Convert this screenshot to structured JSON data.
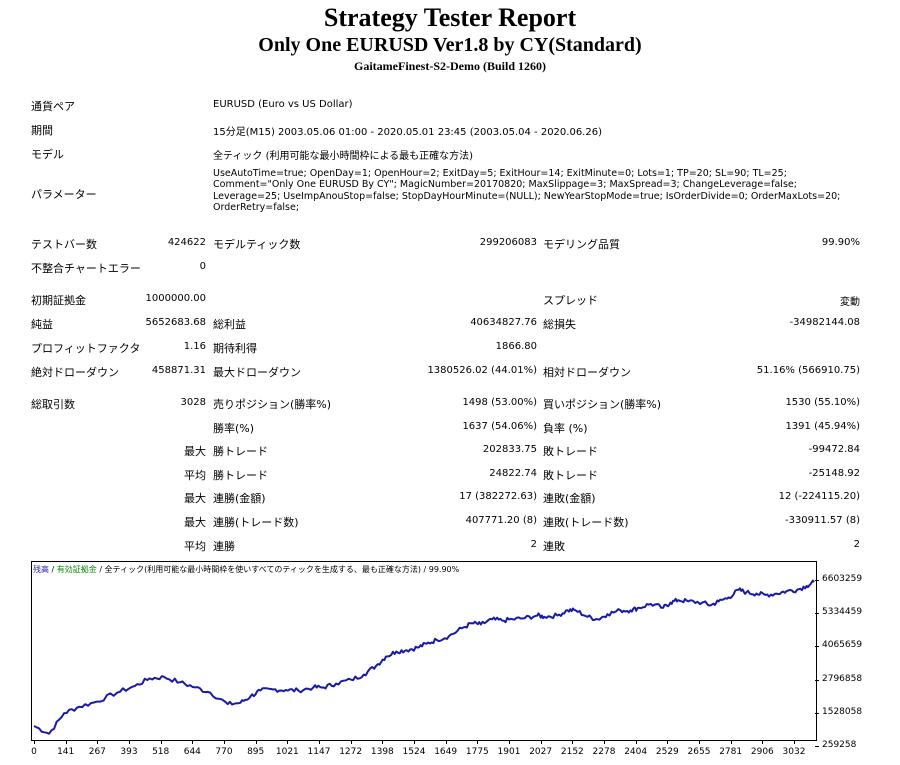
{
  "report": {
    "title": "Strategy Tester Report",
    "subtitle": "Only One EURUSD Ver1.8 by CY(Standard)",
    "server": "GaitameFinest-S2-Demo (Build 1260)"
  },
  "info": {
    "symbol_label": "通貨ペア",
    "symbol_value": "EURUSD (Euro vs US Dollar)",
    "period_label": "期間",
    "period_value": "15分足(M15) 2003.05.06 01:00 - 2020.05.01 23:45 (2003.05.04 - 2020.06.26)",
    "model_label": "モデル",
    "model_value": "全ティック (利用可能な最小時間枠による最も正確な方法)",
    "params_label": "パラメーター",
    "params_value": "UseAutoTime=true; OpenDay=1; OpenHour=2; ExitDay=5; ExitHour=14; ExitMinute=0; Lots=1; TP=20; SL=90; TL=25; Comment=\"Only One EURUSD By CY\"; MagicNumber=20170820; MaxSlippage=3; MaxSpread=3; ChangeLeverage=false; Leverage=25; UseImpAnouStop=false; StopDayHourMinute=(NULL); NewYearStopMode=true; IsOrderDivide=0; OrderMaxLots=20; OrderRetry=false;"
  },
  "stats": {
    "bars_label": "テストバー数",
    "bars_value": "424622",
    "ticks_label": "モデルティック数",
    "ticks_value": "299206083",
    "quality_label": "モデリング品質",
    "quality_value": "99.90%",
    "mismatch_label": "不整合チャートエラー",
    "mismatch_value": "0",
    "deposit_label": "初期証拠金",
    "deposit_value": "1000000.00",
    "spread_label": "スプレッド",
    "spread_value": "変動",
    "net_label": "純益",
    "net_value": "5652683.68",
    "gross_profit_label": "総利益",
    "gross_profit_value": "40634827.76",
    "gross_loss_label": "総損失",
    "gross_loss_value": "-34982144.08",
    "pf_label": "プロフィットファクタ",
    "pf_value": "1.16",
    "expected_label": "期待利得",
    "expected_value": "1866.80",
    "abs_dd_label": "絶対ドローダウン",
    "abs_dd_value": "458871.31",
    "max_dd_label": "最大ドローダウン",
    "max_dd_value": "1380526.02 (44.01%)",
    "rel_dd_label": "相対ドローダウン",
    "rel_dd_value": "51.16% (566910.75)",
    "trades_label": "総取引数",
    "trades_value": "3028",
    "short_label": "売りポジション(勝率%)",
    "short_value": "1498 (53.00%)",
    "long_label": "買いポジション(勝率%)",
    "long_value": "1530 (55.10%)",
    "win_pct_label": "勝率(%)",
    "win_pct_value": "1637 (54.06%)",
    "loss_pct_label": "負率 (%)",
    "loss_pct_value": "1391 (45.94%)",
    "max_label": "最大",
    "avg_label": "平均",
    "win_trade_label": "勝トレード",
    "loss_trade_label": "敗トレード",
    "max_win_value": "202833.75",
    "max_loss_value": "-99472.84",
    "avg_win_value": "24822.74",
    "avg_loss_value": "-25148.92",
    "consec_win_money_label": "連勝(金額)",
    "consec_win_money_value": "17 (382272.63)",
    "consec_loss_money_label": "連敗(金額)",
    "consec_loss_money_value": "12 (-224115.20)",
    "consec_win_count_label": "連勝(トレード数)",
    "consec_win_count_value": "407771.20 (8)",
    "consec_loss_count_label": "連敗(トレード数)",
    "consec_loss_count_value": "-330911.57 (8)",
    "avg_consec_win_label": "連勝",
    "avg_consec_win_value": "2",
    "avg_consec_loss_label": "連敗",
    "avg_consec_loss_value": "2"
  },
  "chart_legend": {
    "balance": "残高",
    "sep1": " / ",
    "margin": "有効証拠金",
    "sep2": " / ",
    "rest": "全ティック(利用可能な最小時間枠を使いすべてのティックを生成する、最も正確な方法) / 99.90%"
  },
  "chart_data": {
    "type": "line",
    "x_ticks": [
      "0",
      "141",
      "267",
      "393",
      "518",
      "644",
      "770",
      "895",
      "1021",
      "1147",
      "1272",
      "1398",
      "1524",
      "1649",
      "1775",
      "1901",
      "2027",
      "2152",
      "2278",
      "2404",
      "2529",
      "2655",
      "2781",
      "2906",
      "3032"
    ],
    "y_ticks": [
      "6603259",
      "5334459",
      "4065659",
      "2796858",
      "1528058",
      "259258"
    ],
    "ylim": [
      259258,
      6603259
    ],
    "xlim": [
      0,
      3099
    ],
    "colors": {
      "line": "#1a1aa8"
    },
    "series": [
      {
        "name": "残高",
        "x": [
          0,
          60,
          120,
          180,
          250,
          330,
          400,
          460,
          518,
          580,
          640,
          700,
          770,
          820,
          860,
          900,
          950,
          1000,
          1050,
          1110,
          1150,
          1200,
          1260,
          1310,
          1360,
          1398,
          1440,
          1480,
          1524,
          1560,
          1600,
          1649,
          1700,
          1740,
          1775,
          1820,
          1860,
          1901,
          1950,
          2000,
          2027,
          2080,
          2120,
          2152,
          2200,
          2240,
          2278,
          2330,
          2370,
          2404,
          2450,
          2500,
          2529,
          2560,
          2600,
          2655,
          2690,
          2720,
          2760,
          2800,
          2830,
          2870,
          2906,
          2950,
          2990,
          3032,
          3070,
          3099
        ],
        "y": [
          1000000,
          700000,
          1500000,
          1750000,
          1950000,
          2300000,
          2550000,
          2850000,
          2900000,
          2700000,
          2500000,
          2300000,
          1850000,
          1900000,
          2150000,
          2380000,
          2420000,
          2400000,
          2380000,
          2500000,
          2500000,
          2650000,
          2800000,
          3000000,
          3350000,
          3700000,
          3900000,
          3950000,
          4050000,
          4200000,
          4350000,
          4500000,
          4800000,
          5000000,
          4950000,
          5150000,
          5100000,
          5150000,
          5200000,
          5300000,
          5250000,
          5300000,
          5500000,
          5500000,
          5250000,
          5150000,
          5350000,
          5500000,
          5500000,
          5600000,
          5750000,
          5600000,
          5800000,
          5900000,
          5850000,
          5800000,
          5700000,
          5850000,
          6000000,
          6300000,
          6200000,
          6150000,
          6100000,
          6150000,
          6250000,
          6300000,
          6450000,
          6600000
        ]
      }
    ]
  }
}
